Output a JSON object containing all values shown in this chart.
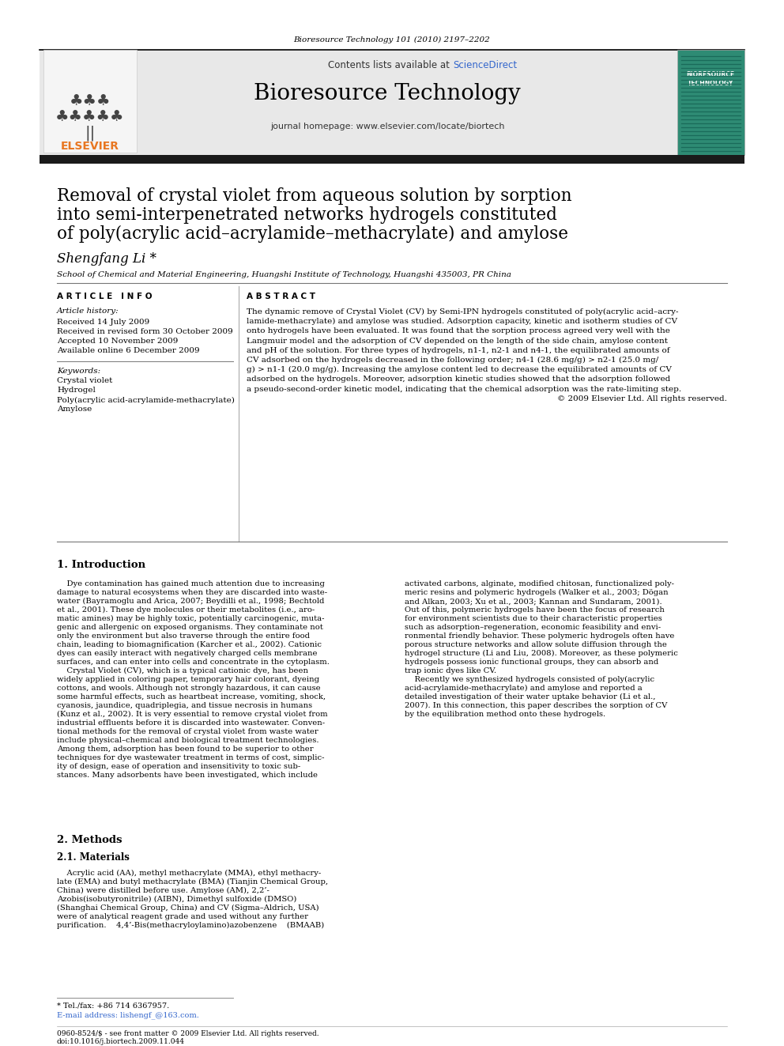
{
  "journal_ref": "Bioresource Technology 101 (2010) 2197–2202",
  "contents_text": "Contents lists available at ",
  "sciencedirect_text": "ScienceDirect",
  "journal_title": "Bioresource Technology",
  "journal_homepage": "journal homepage: www.elsevier.com/locate/biortech",
  "paper_title_line1": "Removal of crystal violet from aqueous solution by sorption",
  "paper_title_line2": "into semi-interpenetrated networks hydrogels constituted",
  "paper_title_line3": "of poly(acrylic acid–acrylamide–methacrylate) and amylose",
  "author": "Shengfang Li *",
  "affiliation": "School of Chemical and Material Engineering, Huangshi Institute of Technology, Huangshi 435003, PR China",
  "article_info_title": "A R T I C L E   I N F O",
  "abstract_title": "A B S T R A C T",
  "article_history_title": "Article history:",
  "received": "Received 14 July 2009",
  "received_revised": "Received in revised form 30 October 2009",
  "accepted": "Accepted 10 November 2009",
  "available": "Available online 6 December 2009",
  "keywords_title": "Keywords:",
  "kw1": "Crystal violet",
  "kw2": "Hydrogel",
  "kw3": "Poly(acrylic acid-acrylamide-methacrylate)",
  "kw4": "Amylose",
  "abstract_lines": [
    "The dynamic remove of Crystal Violet (CV) by Semi-IPN hydrogels constituted of poly(acrylic acid–acry-",
    "lamide-methacrylate) and amylose was studied. Adsorption capacity, kinetic and isotherm studies of CV",
    "onto hydrogels have been evaluated. It was found that the sorption process agreed very well with the",
    "Langmuir model and the adsorption of CV depended on the length of the side chain, amylose content",
    "and pH of the solution. For three types of hydrogels, n1-1, n2-1 and n4-1, the equilibrated amounts of",
    "CV adsorbed on the hydrogels decreased in the following order; n4-1 (28.6 mg/g) > n2-1 (25.0 mg/",
    "g) > n1-1 (20.0 mg/g). Increasing the amylose content led to decrease the equilibrated amounts of CV",
    "adsorbed on the hydrogels. Moreover, adsorption kinetic studies showed that the adsorption followed",
    "a pseudo-second-order kinetic model, indicating that the chemical adsorption was the rate-limiting step.",
    "© 2009 Elsevier Ltd. All rights reserved."
  ],
  "section1_title": "1. Introduction",
  "intro_col1_lines": [
    "    Dye contamination has gained much attention due to increasing",
    "damage to natural ecosystems when they are discarded into waste-",
    "water (Bayramoglu and Arica, 2007; Beydilli et al., 1998; Bechtold",
    "et al., 2001). These dye molecules or their metabolites (i.e., aro-",
    "matic amines) may be highly toxic, potentially carcinogenic, muta-",
    "genic and allergenic on exposed organisms. They contaminate not",
    "only the environment but also traverse through the entire food",
    "chain, leading to biomagnification (Karcher et al., 2002). Cationic",
    "dyes can easily interact with negatively charged cells membrane",
    "surfaces, and can enter into cells and concentrate in the cytoplasm.",
    "    Crystal Violet (CV), which is a typical cationic dye, has been",
    "widely applied in coloring paper, temporary hair colorant, dyeing",
    "cottons, and wools. Although not strongly hazardous, it can cause",
    "some harmful effects, such as heartbeat increase, vomiting, shock,",
    "cyanosis, jaundice, quadriplegia, and tissue necrosis in humans",
    "(Kunz et al., 2002). It is very essential to remove crystal violet from",
    "industrial effluents before it is discarded into wastewater. Conven-",
    "tional methods for the removal of crystal violet from waste water",
    "include physical–chemical and biological treatment technologies.",
    "Among them, adsorption has been found to be superior to other",
    "techniques for dye wastewater treatment in terms of cost, simplic-",
    "ity of design, ease of operation and insensitivity to toxic sub-",
    "stances. Many adsorbents have been investigated, which include"
  ],
  "intro_col2_lines": [
    "activated carbons, alginate, modified chitosan, functionalized poly-",
    "meric resins and polymeric hydrogels (Walker et al., 2003; Dögan",
    "and Alkan, 2003; Xu et al., 2003; Kannan and Sundaram, 2001).",
    "Out of this, polymeric hydrogels have been the focus of research",
    "for environment scientists due to their characteristic properties",
    "such as adsorption–regeneration, economic feasibility and envi-",
    "ronmental friendly behavior. These polymeric hydrogels often have",
    "porous structure networks and allow solute diffusion through the",
    "hydrogel structure (Li and Liu, 2008). Moreover, as these polymeric",
    "hydrogels possess ionic functional groups, they can absorb and",
    "trap ionic dyes like CV.",
    "    Recently we synthesized hydrogels consisted of poly(acrylic",
    "acid-acrylamide-methacrylate) and amylose and reported a",
    "detailed investigation of their water uptake behavior (Li et al.,",
    "2007). In this connection, this paper describes the sorption of CV",
    "by the equilibration method onto these hydrogels."
  ],
  "section2_title": "2. Methods",
  "section21_title": "2.1. Materials",
  "materials_col1_lines": [
    "    Acrylic acid (AA), methyl methacrylate (MMA), ethyl methacry-",
    "late (EMA) and butyl methacrylate (BMA) (Tianjin Chemical Group,",
    "China) were distilled before use. Amylose (AM), 2,2’-",
    "Azobis(isobutyronitrile) (AIBN), Dimethyl sulfoxide (DMSO)",
    "(Shanghai Chemical Group, China) and CV (Sigma–Aldrich, USA)",
    "were of analytical reagent grade and used without any further",
    "purification.    4,4’-Bis(methacryloylamino)azobenzene    (BMAAB)"
  ],
  "footnote_tel": "* Tel./fax: +86 714 6367957.",
  "footnote_email": "E-mail address: lishengf_@163.com.",
  "issn": "0960-8524/$ - see front matter © 2009 Elsevier Ltd. All rights reserved.",
  "doi": "doi:10.1016/j.biortech.2009.11.044",
  "bg_color": "#ffffff",
  "header_bg": "#e8e8e8",
  "black_bar_color": "#1a1a1a",
  "title_color": "#000000",
  "link_color": "#3366cc",
  "elsevier_orange": "#e87722"
}
